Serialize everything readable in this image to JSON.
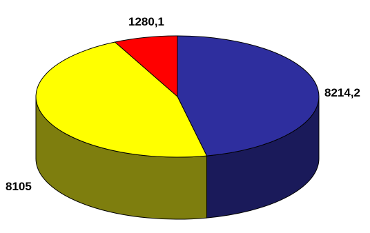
{
  "chart_data": {
    "type": "pie",
    "title": "",
    "slices": [
      {
        "label": "8214,2",
        "value": 8214.2,
        "color": "#2e2e9e",
        "side_color": "#1a1a5a"
      },
      {
        "label": "8105",
        "value": 8105,
        "color": "#ffff00",
        "side_color": "#7e7e0e"
      },
      {
        "label": "1280,1",
        "value": 1280.1,
        "color": "#ff0000",
        "side_color": "#9a0000"
      }
    ],
    "three_d": true,
    "legend": "none"
  }
}
